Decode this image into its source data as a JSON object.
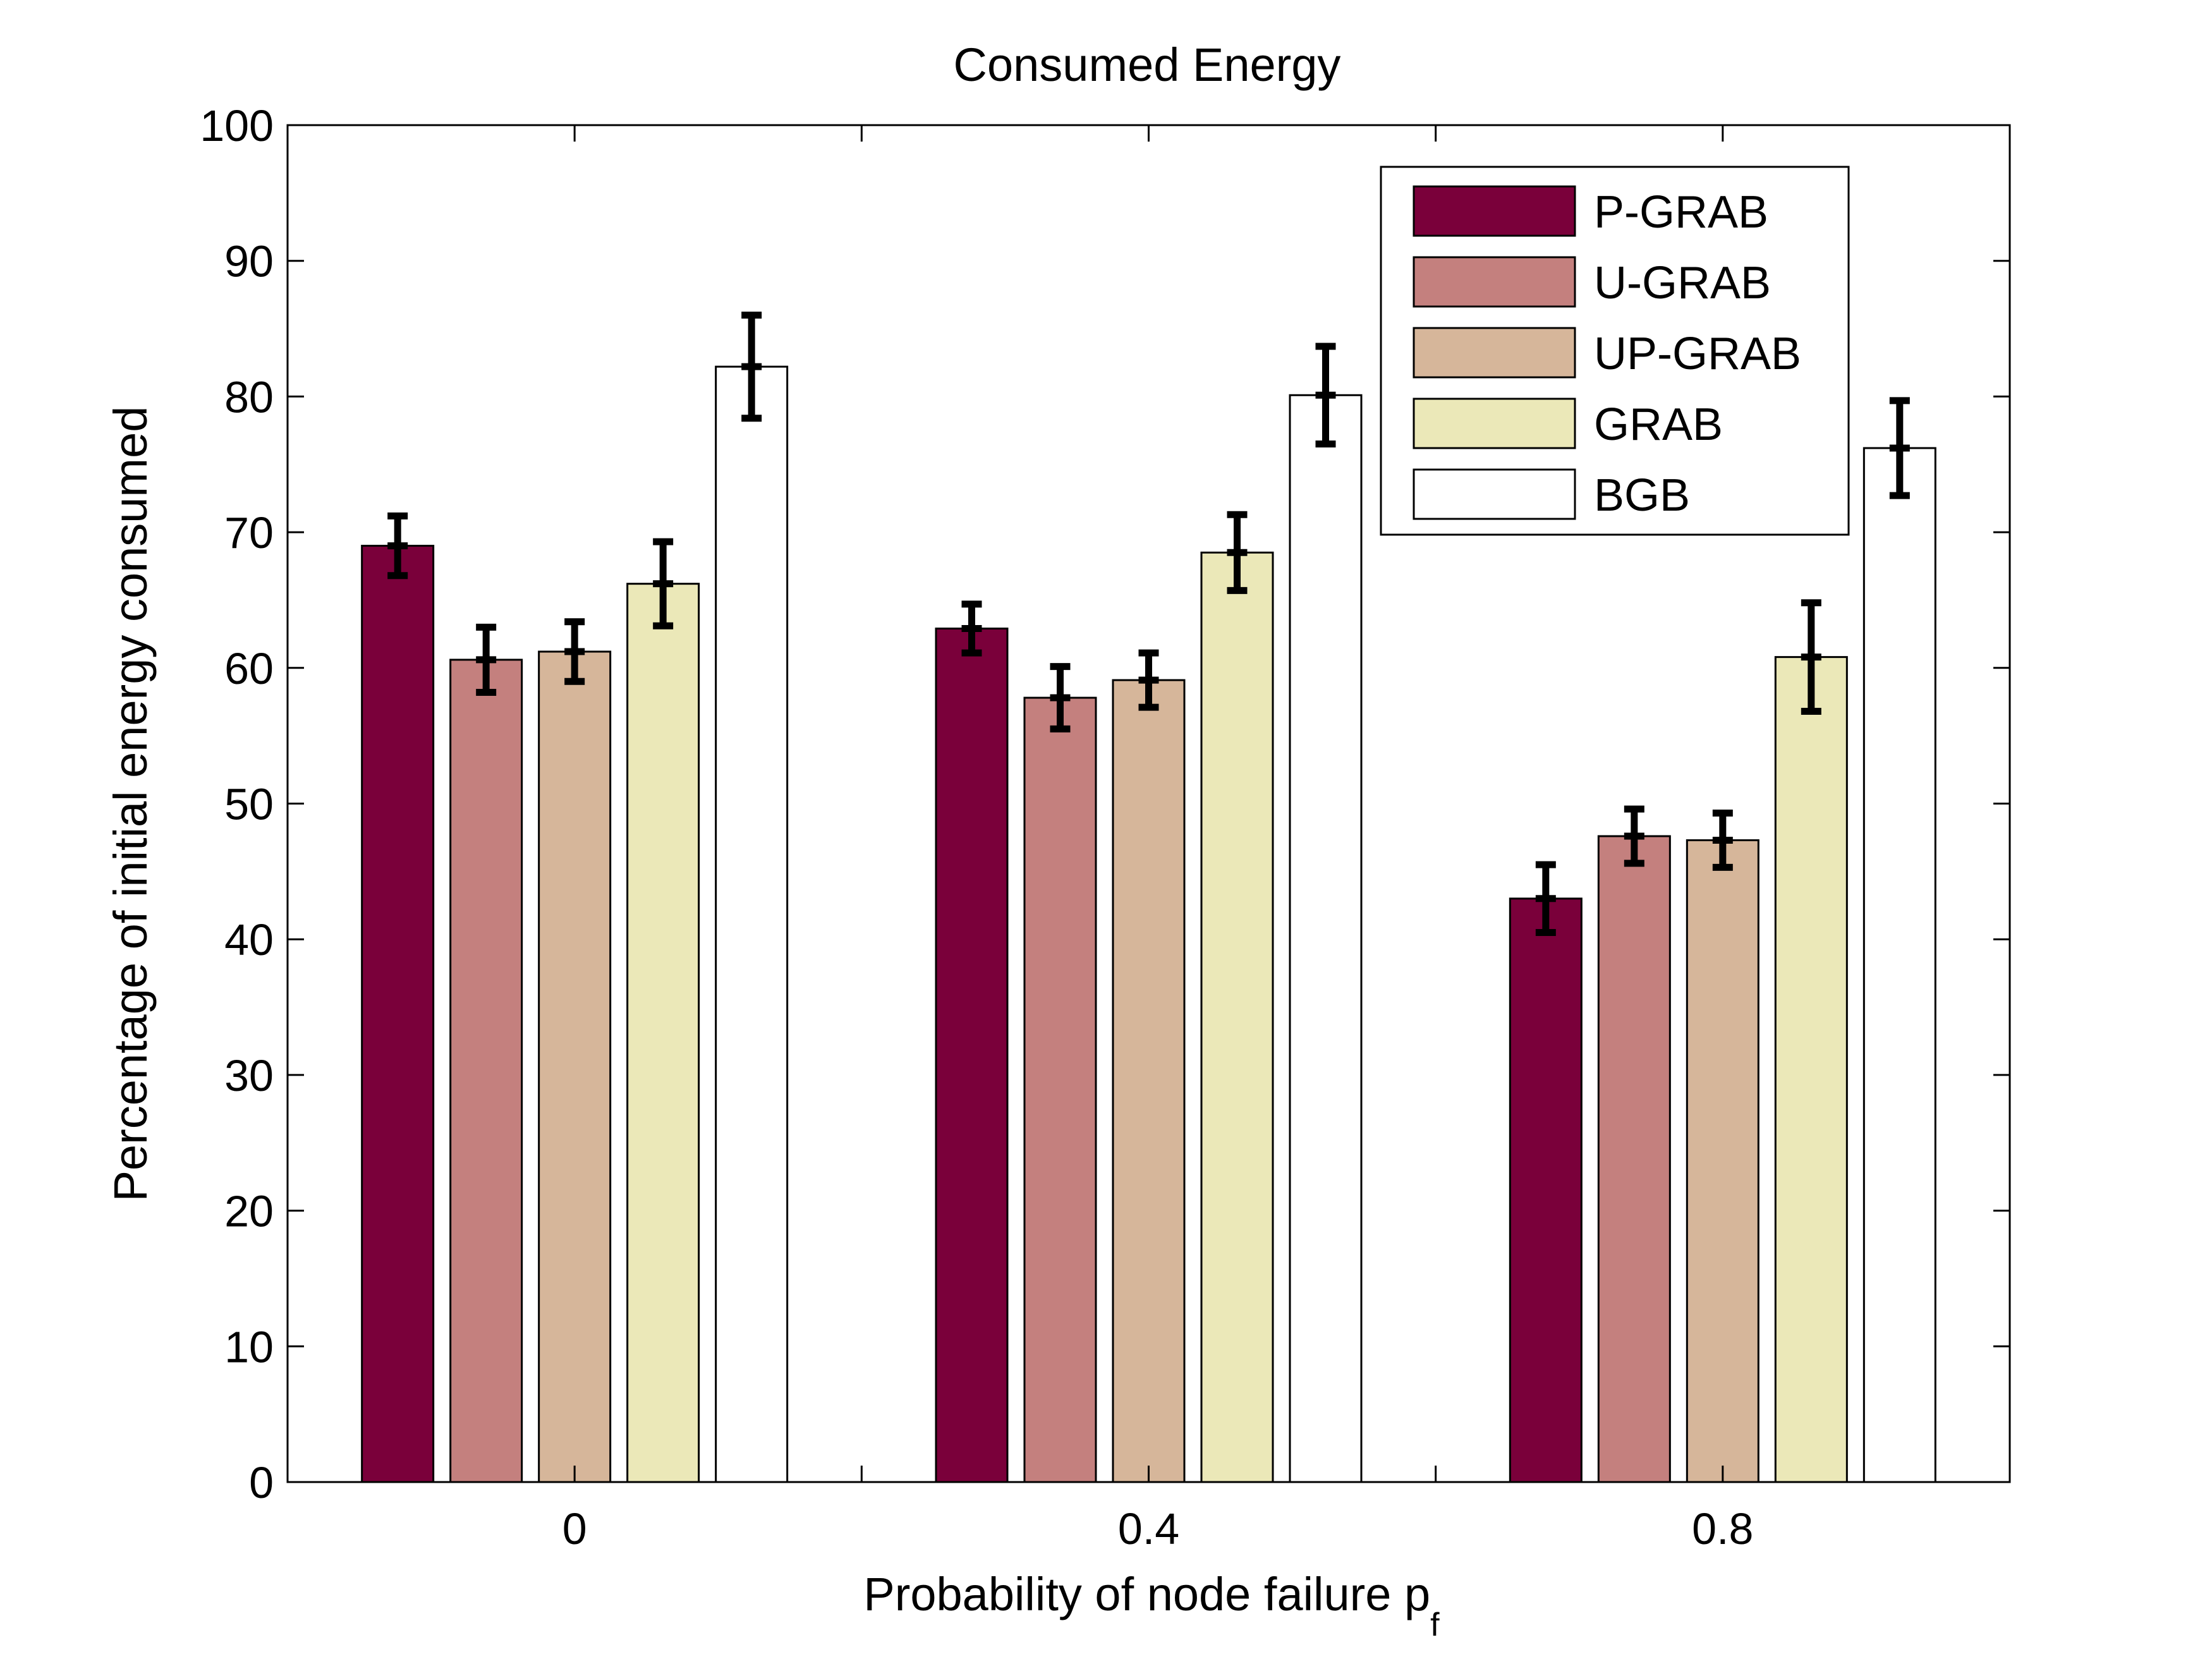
{
  "chart_data": {
    "type": "bar",
    "title": "Consumed Energy",
    "xlabel": "Probability of node failure p",
    "xlabel_subscript": "f",
    "ylabel": "Percentage of initial energy consumed",
    "categories": [
      "0",
      "0.4",
      "0.8"
    ],
    "ylim": [
      0,
      100
    ],
    "yticks": [
      0,
      10,
      20,
      30,
      40,
      50,
      60,
      70,
      80,
      90,
      100
    ],
    "ytick_labels": [
      "0",
      "10",
      "20",
      "30",
      "40",
      "50",
      "60",
      "70",
      "80",
      "90",
      "100"
    ],
    "legend_position": "top-right",
    "grid": false,
    "series": [
      {
        "name": "P-GRAB",
        "color": "#7a003a",
        "values": [
          69.0,
          62.9,
          43.0
        ],
        "errors": [
          2.2,
          1.8,
          2.5
        ]
      },
      {
        "name": "U-GRAB",
        "color": "#c4807e",
        "values": [
          60.6,
          57.8,
          47.6
        ],
        "errors": [
          2.4,
          2.3,
          2.0
        ]
      },
      {
        "name": "UP-GRAB",
        "color": "#d6b69a",
        "values": [
          61.2,
          59.1,
          47.3
        ],
        "errors": [
          2.2,
          2.0,
          2.0
        ]
      },
      {
        "name": "GRAB",
        "color": "#ebe8b8",
        "values": [
          66.2,
          68.5,
          60.8
        ],
        "errors": [
          3.1,
          2.8,
          4.0
        ]
      },
      {
        "name": "BGB",
        "color": "#ffffff",
        "values": [
          82.2,
          80.1,
          76.2
        ],
        "errors": [
          3.8,
          3.6,
          3.5
        ]
      }
    ]
  }
}
